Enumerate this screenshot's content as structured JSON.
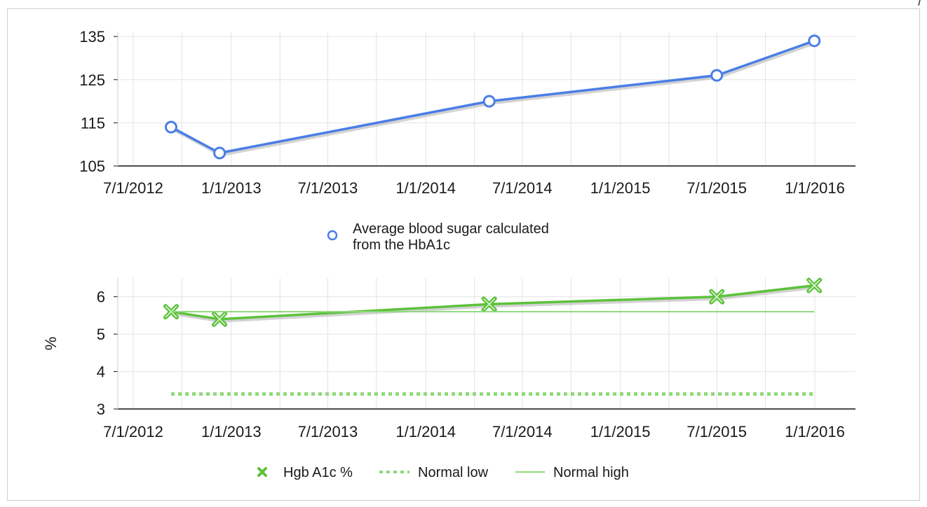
{
  "colors": {
    "series_blue": "#4a7ee6",
    "series_green": "#5cc23b",
    "normal_low": "#8fd97a",
    "normal_high": "#8fd97a",
    "grid": "#e3e3e3",
    "axis": "#111111",
    "shadow": "#b5b5b5"
  },
  "chart_data": [
    {
      "type": "line",
      "title": "",
      "xlabel": "",
      "ylabel": "",
      "x_axis_type": "date",
      "x_ticks": [
        "7/1/2012",
        "1/1/2013",
        "7/1/2013",
        "1/1/2014",
        "7/1/2014",
        "1/1/2015",
        "7/1/2015",
        "1/1/2016"
      ],
      "xlim": [
        "2012-07-01",
        "2016-03-01"
      ],
      "y_ticks": [
        105,
        115,
        125,
        135
      ],
      "ylim": [
        105,
        136
      ],
      "grid": true,
      "legend_position": "bottom-center",
      "series": [
        {
          "name": "Average blood sugar calculated from the HbA1c",
          "legend_lines": [
            "Average blood sugar calculated",
            "from the HbA1c"
          ],
          "marker": "circle-open",
          "x": [
            "2012-09-10",
            "2012-12-10",
            "2014-04-30",
            "2015-07-01",
            "2015-12-31"
          ],
          "y": [
            114,
            108,
            120,
            126,
            134
          ]
        }
      ]
    },
    {
      "type": "line",
      "title": "",
      "xlabel": "",
      "ylabel": "%",
      "x_axis_type": "date",
      "x_ticks": [
        "7/1/2012",
        "1/1/2013",
        "7/1/2013",
        "1/1/2014",
        "7/1/2014",
        "1/1/2015",
        "7/1/2015",
        "1/1/2016"
      ],
      "xlim": [
        "2012-07-01",
        "2016-03-01"
      ],
      "y_ticks": [
        3,
        4,
        5,
        6
      ],
      "ylim": [
        3,
        6.5
      ],
      "grid": true,
      "legend_position": "bottom-center",
      "series": [
        {
          "name": "Hgb A1c %",
          "marker": "x",
          "x": [
            "2012-09-10",
            "2012-12-10",
            "2014-04-30",
            "2015-07-01",
            "2015-12-31"
          ],
          "y": [
            5.6,
            5.4,
            5.8,
            6.0,
            6.3
          ]
        },
        {
          "name": "Normal low",
          "style": "dotted",
          "x": [
            "2012-09-10",
            "2015-12-31"
          ],
          "y": [
            3.4,
            3.4
          ]
        },
        {
          "name": "Normal high",
          "style": "solid",
          "x": [
            "2012-09-10",
            "2015-12-31"
          ],
          "y": [
            5.6,
            5.6
          ]
        }
      ]
    }
  ]
}
